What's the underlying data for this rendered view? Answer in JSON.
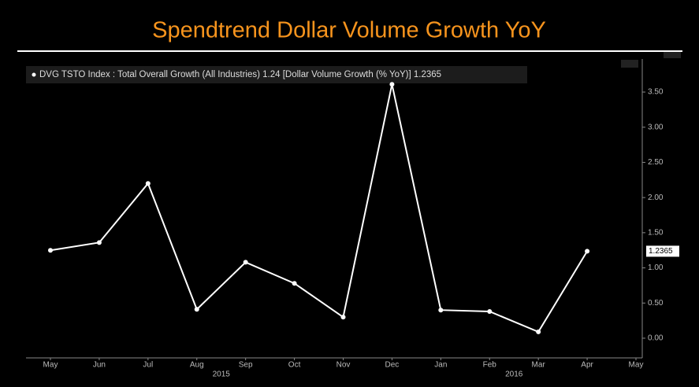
{
  "chart_data": {
    "type": "line",
    "title": "Spendtrend Dollar Volume Growth YoY",
    "categories": [
      "May",
      "Jun",
      "Jul",
      "Aug",
      "Sep",
      "Oct",
      "Nov",
      "Dec",
      "Jan",
      "Feb",
      "Mar",
      "Apr",
      "May"
    ],
    "years": [
      "2015",
      "2016"
    ],
    "series": [
      {
        "name": "DVG TSTO Index : Total Overall Growth (All Industries) 1.24 [Dollar Volume Growth (% YoY)] 1.2365",
        "color": "#ffffff",
        "values": [
          1.25,
          1.36,
          2.2,
          0.41,
          1.08,
          0.78,
          0.3,
          3.61,
          0.4,
          0.38,
          0.09,
          1.2365,
          null
        ]
      }
    ],
    "ylim": [
      -0.28,
      3.97
    ],
    "yticks": [
      {
        "value": 0,
        "label": "0.00"
      },
      {
        "value": 0.5,
        "label": "0.50"
      },
      {
        "value": 1,
        "label": "1.00"
      },
      {
        "value": 1.5,
        "label": "1.50"
      },
      {
        "value": 2,
        "label": "2.00"
      },
      {
        "value": 2.5,
        "label": "2.50"
      },
      {
        "value": 3,
        "label": "3.00"
      },
      {
        "value": 3.5,
        "label": "3.50"
      }
    ],
    "grid": false
  }
}
